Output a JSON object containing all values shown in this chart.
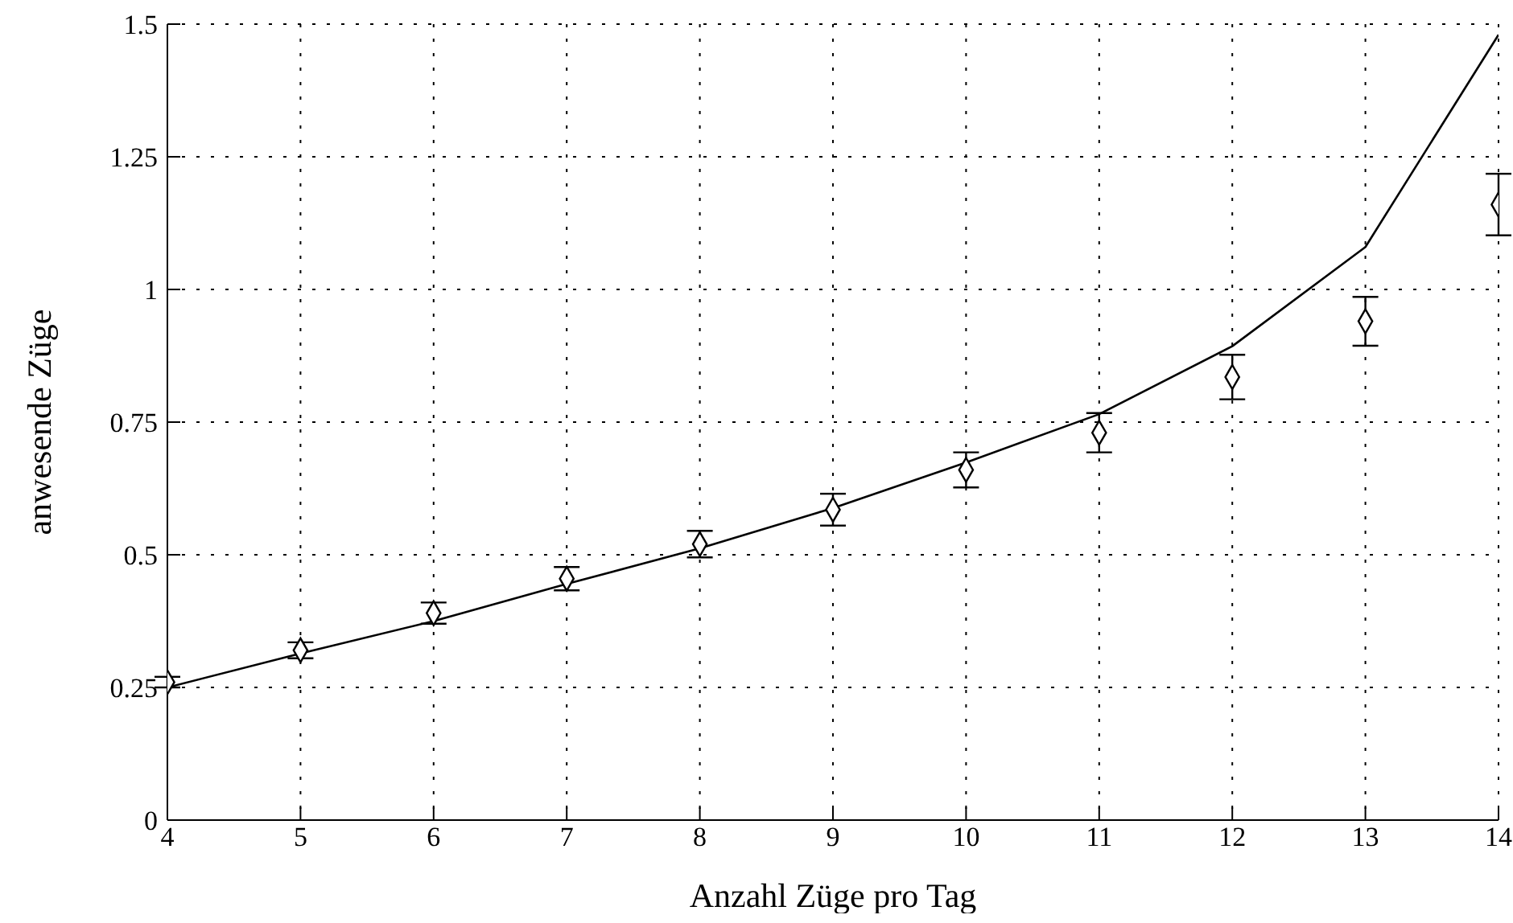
{
  "chart_data": {
    "type": "scatter",
    "xlabel": "Anzahl Züge pro Tag",
    "ylabel": "anwesende Züge",
    "xlim": [
      4,
      14
    ],
    "xticks": [
      4,
      5,
      6,
      7,
      8,
      9,
      10,
      11,
      12,
      13,
      14
    ],
    "ylim": [
      0,
      1.5
    ],
    "yticks": [
      0,
      0.25,
      0.5,
      0.75,
      1,
      1.25,
      1.5
    ],
    "grid": true,
    "series": [
      {
        "color": "#000000",
        "marker": "diamond",
        "x": [
          4,
          5,
          6,
          7,
          8,
          9,
          10,
          11,
          12,
          13,
          14
        ],
        "values": [
          0.26,
          0.32,
          0.39,
          0.455,
          0.52,
          0.585,
          0.66,
          0.73,
          0.835,
          0.94,
          1.16
        ],
        "errors": [
          0.01,
          0.015,
          0.02,
          0.022,
          0.025,
          0.03,
          0.033,
          0.037,
          0.042,
          0.046,
          0.058
        ]
      },
      {
        "type": "line",
        "color": "#000000",
        "marker": "none",
        "line_style": "solid",
        "x": [
          4,
          5,
          6,
          7,
          8,
          9,
          10,
          11,
          12,
          13,
          14
        ],
        "values": [
          0.25,
          0.314,
          0.375,
          0.445,
          0.512,
          0.588,
          0.674,
          0.765,
          0.893,
          1.08,
          1.48
        ]
      }
    ]
  }
}
